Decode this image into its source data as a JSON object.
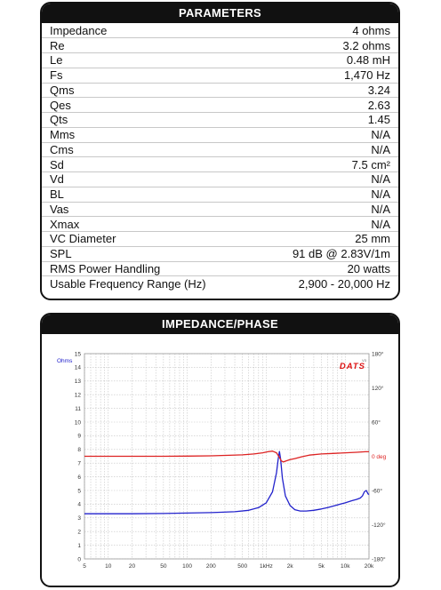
{
  "parameters": {
    "title": "PARAMETERS",
    "rows": [
      {
        "name": "Impedance",
        "value": "4 ohms"
      },
      {
        "name": "Re",
        "value": "3.2 ohms"
      },
      {
        "name": "Le",
        "value": "0.48 mH"
      },
      {
        "name": "Fs",
        "value": "1,470 Hz"
      },
      {
        "name": "Qms",
        "value": "3.24"
      },
      {
        "name": "Qes",
        "value": "2.63"
      },
      {
        "name": "Qts",
        "value": "1.45"
      },
      {
        "name": "Mms",
        "value": "N/A"
      },
      {
        "name": "Cms",
        "value": "N/A"
      },
      {
        "name": "Sd",
        "value": "7.5 cm²"
      },
      {
        "name": "Vd",
        "value": "N/A"
      },
      {
        "name": "BL",
        "value": "N/A"
      },
      {
        "name": "Vas",
        "value": "N/A"
      },
      {
        "name": "Xmax",
        "value": "N/A"
      },
      {
        "name": "VC Diameter",
        "value": "25 mm"
      },
      {
        "name": "SPL",
        "value": "91 dB @ 2.83V/1m"
      },
      {
        "name": "RMS Power Handling",
        "value": "20 watts"
      },
      {
        "name": "Usable Frequency Range (Hz)",
        "value": "2,900 - 20,000 Hz"
      }
    ]
  },
  "impedance_panel": {
    "title": "IMPEDANCE/PHASE",
    "brand": "DATS",
    "brand_sub": "V3"
  },
  "colors": {
    "impedance": "#2222cc",
    "phase": "#dd2222",
    "brand": "#dd1111",
    "grid": "#c4c4c4"
  },
  "chart_data": {
    "type": "line",
    "x_scale": "log",
    "xlim": [
      5,
      20000
    ],
    "x_ticks": [
      {
        "v": 5,
        "label": "5"
      },
      {
        "v": 10,
        "label": "10"
      },
      {
        "v": 20,
        "label": "20"
      },
      {
        "v": 50,
        "label": "50"
      },
      {
        "v": 100,
        "label": "100"
      },
      {
        "v": 200,
        "label": "200"
      },
      {
        "v": 500,
        "label": "500"
      },
      {
        "v": 1000,
        "label": "1kHz"
      },
      {
        "v": 2000,
        "label": "2k"
      },
      {
        "v": 5000,
        "label": "5k"
      },
      {
        "v": 10000,
        "label": "10k"
      },
      {
        "v": 20000,
        "label": "20k"
      }
    ],
    "ylabel_left": "Ohms",
    "ylim_left": [
      0,
      15
    ],
    "y_ticks_left": [
      "0",
      "1",
      "2",
      "3",
      "4",
      "5",
      "6",
      "7",
      "8",
      "9",
      "10",
      "11",
      "12",
      "13",
      "14",
      "15"
    ],
    "ylim_right": [
      -180,
      180
    ],
    "y_ticks_right": [
      {
        "v": 180,
        "label": "180°"
      },
      {
        "v": 120,
        "label": "120°"
      },
      {
        "v": 60,
        "label": "60°"
      },
      {
        "v": 0,
        "label": "0 deg"
      },
      {
        "v": -60,
        "label": "-60°"
      },
      {
        "v": -120,
        "label": "-120°"
      },
      {
        "v": -180,
        "label": "-180°"
      }
    ],
    "grid": true,
    "series": [
      {
        "axis": "left",
        "x": [
          5,
          20,
          50,
          100,
          200,
          400,
          600,
          800,
          1000,
          1200,
          1350,
          1420,
          1470,
          1520,
          1600,
          1750,
          2000,
          2300,
          2700,
          3200,
          4000,
          5000,
          6000,
          8000,
          10000,
          12000,
          14000,
          15500,
          16500,
          17500,
          18500,
          19500,
          20000
        ],
        "y": [
          3.3,
          3.3,
          3.32,
          3.35,
          3.38,
          3.45,
          3.55,
          3.75,
          4.1,
          4.9,
          6.3,
          7.3,
          7.85,
          7.3,
          5.9,
          4.6,
          3.9,
          3.6,
          3.5,
          3.5,
          3.55,
          3.65,
          3.75,
          3.95,
          4.1,
          4.25,
          4.35,
          4.45,
          4.6,
          4.9,
          5.0,
          4.75,
          4.7
        ]
      },
      {
        "axis": "right",
        "x": [
          5,
          20,
          50,
          100,
          200,
          300,
          500,
          700,
          900,
          1050,
          1200,
          1350,
          1470,
          1550,
          1650,
          1800,
          2000,
          2300,
          2800,
          3500,
          5000,
          7000,
          10000,
          14000,
          18000,
          20000
        ],
        "y": [
          0,
          0,
          0,
          0.3,
          0.8,
          1.5,
          2.5,
          4,
          6,
          8,
          9,
          6,
          -2,
          -8,
          -10,
          -8,
          -6,
          -4,
          -1,
          2,
          4,
          5,
          6,
          7,
          8,
          8
        ]
      }
    ]
  }
}
